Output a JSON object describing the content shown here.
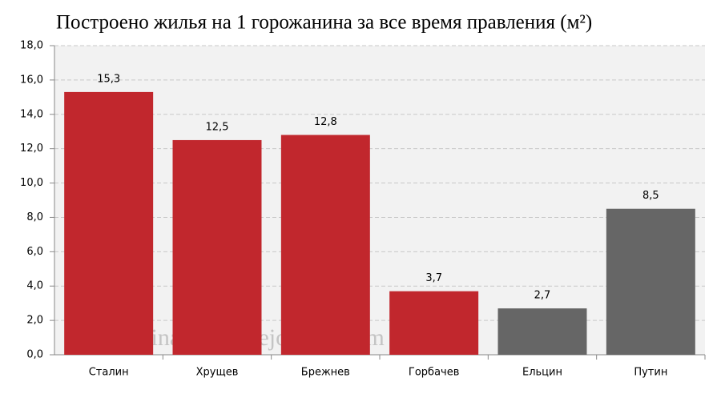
{
  "chart_data": {
    "type": "bar",
    "title": "Построено жилья на 1 горожанина за все время правления (м²)",
    "annotation": "© burckina-new.livejournal.com",
    "categories": [
      "Сталин",
      "Хрущев",
      "Брежнев",
      "Горбачев",
      "Ельцин",
      "Путин"
    ],
    "values": [
      15.3,
      12.5,
      12.8,
      3.7,
      2.7,
      8.5
    ],
    "value_labels": [
      "15,3",
      "12,5",
      "12,8",
      "3,7",
      "2,7",
      "8,5"
    ],
    "colors": [
      "#c1272d",
      "#c1272d",
      "#c1272d",
      "#c1272d",
      "#666666",
      "#666666"
    ],
    "ylim": [
      0,
      18
    ],
    "yticks": [
      {
        "value": 0,
        "label": "0,0"
      },
      {
        "value": 2,
        "label": "2,0"
      },
      {
        "value": 4,
        "label": "4,0"
      },
      {
        "value": 6,
        "label": "6,0"
      },
      {
        "value": 8,
        "label": "8,0"
      },
      {
        "value": 10,
        "label": "10,0"
      },
      {
        "value": 12,
        "label": "12,0"
      },
      {
        "value": 14,
        "label": "14,0"
      },
      {
        "value": 16,
        "label": "16,0"
      },
      {
        "value": 18,
        "label": "18,0"
      }
    ],
    "grid": true
  }
}
